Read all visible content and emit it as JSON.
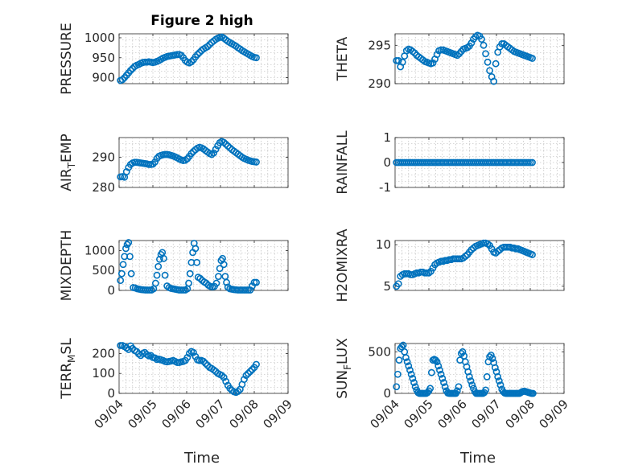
{
  "chart_data": [
    {
      "type": "scatter",
      "title": "Figure 2 high",
      "ylabel": "PRESSURE",
      "ylim": [
        885,
        1010
      ],
      "yticks": [
        "900",
        "950",
        "1000"
      ],
      "ytick_values": [
        900,
        950,
        1000
      ],
      "x": [
        4.04,
        4.1,
        4.16,
        4.22,
        4.28,
        4.34,
        4.4,
        4.46,
        4.52,
        4.58,
        4.64,
        4.7,
        4.76,
        4.82,
        4.88,
        4.94,
        5.0,
        5.06,
        5.12,
        5.18,
        5.24,
        5.3,
        5.36,
        5.42,
        5.48,
        5.54,
        5.6,
        5.66,
        5.72,
        5.78,
        5.84,
        5.9,
        5.96,
        6.02,
        6.08,
        6.14,
        6.2,
        6.26,
        6.32,
        6.38,
        6.44,
        6.5,
        6.56,
        6.62,
        6.68,
        6.74,
        6.8,
        6.86,
        6.92,
        6.98,
        7.04,
        7.1,
        7.16,
        7.22,
        7.28,
        7.34,
        7.4,
        7.46,
        7.52,
        7.58,
        7.64,
        7.7,
        7.76,
        7.82,
        7.88,
        7.94,
        8.0,
        8.06
      ],
      "y": [
        893,
        895,
        900,
        906,
        912,
        918,
        923,
        928,
        931,
        933,
        936,
        938,
        939,
        939,
        940,
        939,
        938,
        939,
        941,
        943,
        946,
        949,
        951,
        953,
        954,
        955,
        956,
        957,
        958,
        958,
        956,
        950,
        943,
        939,
        937,
        940,
        945,
        952,
        958,
        963,
        968,
        972,
        975,
        978,
        983,
        988,
        992,
        996,
        999,
        1001,
        1002,
        999,
        995,
        991,
        988,
        985,
        982,
        979,
        975,
        972,
        968,
        965,
        962,
        959,
        956,
        953,
        951,
        950
      ]
    },
    {
      "type": "scatter",
      "ylabel": "THETA",
      "ylim": [
        290,
        296.5
      ],
      "yticks": [
        "290",
        "295"
      ],
      "ytick_values": [
        290,
        295
      ],
      "x": [
        4.04,
        4.1,
        4.16,
        4.22,
        4.28,
        4.34,
        4.4,
        4.46,
        4.52,
        4.58,
        4.64,
        4.7,
        4.76,
        4.82,
        4.88,
        4.94,
        5.0,
        5.06,
        5.12,
        5.18,
        5.24,
        5.3,
        5.36,
        5.42,
        5.48,
        5.54,
        5.6,
        5.66,
        5.72,
        5.78,
        5.84,
        5.9,
        5.96,
        6.02,
        6.08,
        6.14,
        6.2,
        6.26,
        6.32,
        6.38,
        6.44,
        6.5,
        6.56,
        6.62,
        6.68,
        6.74,
        6.8,
        6.86,
        6.92,
        6.98,
        7.04,
        7.1,
        7.16,
        7.22,
        7.28,
        7.34,
        7.4,
        7.46,
        7.52,
        7.58,
        7.64,
        7.7,
        7.76,
        7.82,
        7.88,
        7.94,
        8.0,
        8.06
      ],
      "y": [
        293.0,
        293.0,
        292.2,
        292.8,
        293.6,
        294.3,
        294.5,
        294.4,
        294.2,
        294.0,
        293.7,
        293.5,
        293.3,
        293.1,
        292.9,
        292.8,
        292.7,
        292.6,
        292.7,
        293.2,
        293.8,
        294.3,
        294.4,
        294.4,
        294.3,
        294.2,
        294.1,
        294.0,
        293.9,
        293.8,
        293.7,
        293.9,
        294.2,
        294.5,
        294.6,
        294.7,
        294.9,
        295.3,
        295.8,
        296.1,
        296.3,
        296.2,
        295.8,
        295.0,
        293.9,
        292.8,
        291.7,
        290.9,
        290.3,
        292.6,
        294.1,
        294.8,
        295.2,
        295.2,
        295.0,
        294.8,
        294.6,
        294.4,
        294.2,
        294.1,
        294.0,
        293.9,
        293.8,
        293.7,
        293.6,
        293.5,
        293.4,
        293.3
      ]
    },
    {
      "type": "scatter",
      "ylabel": "AIR_TEMP",
      "ylabel_main": "AIR",
      "ylabel_sub": "T",
      "ylabel_rest": "EMP",
      "ylim": [
        280,
        296.5
      ],
      "yticks": [
        "280",
        "290"
      ],
      "ytick_values": [
        280,
        290
      ],
      "x": [
        4.04,
        4.1,
        4.16,
        4.22,
        4.28,
        4.34,
        4.4,
        4.46,
        4.52,
        4.58,
        4.64,
        4.7,
        4.76,
        4.82,
        4.88,
        4.94,
        5.0,
        5.06,
        5.12,
        5.18,
        5.24,
        5.3,
        5.36,
        5.42,
        5.48,
        5.54,
        5.6,
        5.66,
        5.72,
        5.78,
        5.84,
        5.9,
        5.96,
        6.02,
        6.08,
        6.14,
        6.2,
        6.26,
        6.32,
        6.38,
        6.44,
        6.5,
        6.56,
        6.62,
        6.68,
        6.74,
        6.8,
        6.86,
        6.92,
        6.98,
        7.04,
        7.1,
        7.16,
        7.22,
        7.28,
        7.34,
        7.4,
        7.46,
        7.52,
        7.58,
        7.64,
        7.7,
        7.76,
        7.82,
        7.88,
        7.94,
        8.0,
        8.06
      ],
      "y": [
        283.5,
        283.6,
        283.4,
        285.2,
        286.6,
        287.6,
        288.1,
        288.3,
        288.3,
        288.2,
        288.1,
        288.0,
        287.9,
        287.8,
        287.6,
        287.6,
        287.7,
        288.4,
        289.6,
        290.3,
        290.6,
        290.8,
        290.9,
        290.9,
        290.8,
        290.6,
        290.4,
        290.1,
        289.8,
        289.4,
        289.1,
        288.9,
        289.0,
        289.5,
        290.3,
        291.2,
        291.9,
        292.5,
        293.0,
        293.3,
        293.1,
        292.7,
        292.2,
        291.7,
        291.2,
        290.9,
        291.4,
        292.6,
        293.8,
        294.8,
        295.2,
        294.9,
        294.3,
        293.7,
        293.1,
        292.5,
        292.0,
        291.5,
        291.0,
        290.5,
        290.0,
        289.6,
        289.3,
        289.0,
        288.8,
        288.6,
        288.5,
        288.4
      ]
    },
    {
      "type": "scatter",
      "ylabel": "RAINFALL",
      "ylim": [
        -1,
        1
      ],
      "yticks": [
        "-1",
        "0",
        "1"
      ],
      "ytick_values": [
        -1,
        0,
        1
      ],
      "x": [
        4.04,
        4.1,
        4.16,
        4.22,
        4.28,
        4.34,
        4.4,
        4.46,
        4.52,
        4.58,
        4.64,
        4.7,
        4.76,
        4.82,
        4.88,
        4.94,
        5.0,
        5.06,
        5.12,
        5.18,
        5.24,
        5.3,
        5.36,
        5.42,
        5.48,
        5.54,
        5.6,
        5.66,
        5.72,
        5.78,
        5.84,
        5.9,
        5.96,
        6.02,
        6.08,
        6.14,
        6.2,
        6.26,
        6.32,
        6.38,
        6.44,
        6.5,
        6.56,
        6.62,
        6.68,
        6.74,
        6.8,
        6.86,
        6.92,
        6.98,
        7.04,
        7.1,
        7.16,
        7.22,
        7.28,
        7.34,
        7.4,
        7.46,
        7.52,
        7.58,
        7.64,
        7.7,
        7.76,
        7.82,
        7.88,
        7.94,
        8.0,
        8.06
      ],
      "y": [
        0,
        0,
        0,
        0,
        0,
        0,
        0,
        0,
        0,
        0,
        0,
        0,
        0,
        0,
        0,
        0,
        0,
        0,
        0,
        0,
        0,
        0,
        0,
        0,
        0,
        0,
        0,
        0,
        0,
        0,
        0,
        0,
        0,
        0,
        0,
        0,
        0,
        0,
        0,
        0,
        0,
        0,
        0,
        0,
        0,
        0,
        0,
        0,
        0,
        0,
        0,
        0,
        0,
        0,
        0,
        0,
        0,
        0,
        0,
        0,
        0,
        0,
        0,
        0,
        0,
        0,
        0,
        0
      ]
    },
    {
      "type": "scatter",
      "ylabel": "MIXDEPTH",
      "ylim": [
        0,
        1250
      ],
      "yticks": [
        "0",
        "500",
        "1000"
      ],
      "ytick_values": [
        0,
        500,
        1000
      ],
      "x": [
        4.04,
        4.08,
        4.12,
        4.16,
        4.2,
        4.24,
        4.28,
        4.32,
        4.36,
        4.42,
        4.48,
        4.54,
        4.6,
        4.66,
        4.72,
        4.78,
        4.84,
        4.9,
        4.96,
        5.02,
        5.08,
        5.12,
        5.16,
        5.2,
        5.24,
        5.28,
        5.32,
        5.36,
        5.42,
        5.48,
        5.54,
        5.6,
        5.66,
        5.72,
        5.78,
        5.84,
        5.9,
        5.96,
        6.02,
        6.06,
        6.1,
        6.14,
        6.18,
        6.22,
        6.26,
        6.3,
        6.34,
        6.4,
        6.46,
        6.52,
        6.58,
        6.64,
        6.7,
        6.76,
        6.82,
        6.88,
        6.94,
        6.98,
        7.02,
        7.06,
        7.1,
        7.14,
        7.18,
        7.22,
        7.28,
        7.34,
        7.4,
        7.46,
        7.52,
        7.58,
        7.64,
        7.7,
        7.76,
        7.82,
        7.88,
        7.94,
        8.0,
        8.06
      ],
      "y": [
        250,
        420,
        650,
        850,
        1050,
        1150,
        1200,
        850,
        420,
        70,
        60,
        40,
        30,
        20,
        15,
        10,
        10,
        10,
        10,
        40,
        180,
        380,
        600,
        780,
        900,
        950,
        800,
        380,
        110,
        70,
        50,
        40,
        30,
        20,
        10,
        10,
        10,
        10,
        40,
        180,
        420,
        700,
        950,
        1180,
        1050,
        700,
        330,
        300,
        250,
        210,
        180,
        130,
        100,
        90,
        100,
        180,
        350,
        550,
        750,
        800,
        650,
        350,
        200,
        80,
        40,
        30,
        20,
        15,
        10,
        10,
        10,
        10,
        10,
        10,
        10,
        110,
        200,
        200
      ]
    },
    {
      "type": "scatter",
      "ylabel": "H2OMIXRA",
      "ylim": [
        4.5,
        10.5
      ],
      "yticks": [
        "5",
        "10"
      ],
      "ytick_values": [
        5,
        10
      ],
      "x": [
        4.04,
        4.1,
        4.16,
        4.22,
        4.28,
        4.34,
        4.4,
        4.46,
        4.52,
        4.58,
        4.64,
        4.7,
        4.76,
        4.82,
        4.88,
        4.94,
        5.0,
        5.06,
        5.12,
        5.18,
        5.24,
        5.3,
        5.36,
        5.42,
        5.48,
        5.54,
        5.6,
        5.66,
        5.72,
        5.78,
        5.84,
        5.9,
        5.96,
        6.02,
        6.08,
        6.14,
        6.2,
        6.26,
        6.32,
        6.38,
        6.44,
        6.5,
        6.56,
        6.62,
        6.68,
        6.74,
        6.8,
        6.86,
        6.92,
        6.98,
        7.04,
        7.1,
        7.16,
        7.22,
        7.28,
        7.34,
        7.4,
        7.46,
        7.52,
        7.58,
        7.64,
        7.7,
        7.76,
        7.82,
        7.88,
        7.94,
        8.0,
        8.06
      ],
      "y": [
        5.0,
        5.3,
        6.2,
        6.4,
        6.5,
        6.5,
        6.5,
        6.4,
        6.4,
        6.5,
        6.6,
        6.6,
        6.7,
        6.7,
        6.6,
        6.6,
        6.6,
        6.8,
        7.2,
        7.6,
        7.8,
        7.9,
        8.0,
        8.0,
        8.1,
        8.1,
        8.2,
        8.2,
        8.3,
        8.3,
        8.3,
        8.3,
        8.3,
        8.4,
        8.6,
        8.8,
        9.1,
        9.4,
        9.6,
        9.8,
        9.9,
        10.0,
        10.1,
        10.2,
        10.2,
        10.1,
        9.9,
        9.5,
        9.1,
        9.0,
        9.2,
        9.4,
        9.6,
        9.7,
        9.7,
        9.7,
        9.7,
        9.6,
        9.6,
        9.5,
        9.5,
        9.4,
        9.3,
        9.2,
        9.1,
        9.0,
        8.9,
        8.8
      ]
    },
    {
      "type": "scatter",
      "ylabel": "TERR_MSL",
      "ylabel_main": "TERR",
      "ylabel_sub": "M",
      "ylabel_rest": "SL",
      "ylim": [
        0,
        250
      ],
      "yticks": [
        "0",
        "100",
        "200"
      ],
      "ytick_values": [
        0,
        100,
        200
      ],
      "x": [
        4.04,
        4.1,
        4.16,
        4.22,
        4.28,
        4.34,
        4.4,
        4.46,
        4.52,
        4.58,
        4.64,
        4.7,
        4.76,
        4.82,
        4.88,
        4.94,
        5.0,
        5.06,
        5.12,
        5.18,
        5.24,
        5.3,
        5.36,
        5.42,
        5.48,
        5.54,
        5.6,
        5.66,
        5.72,
        5.78,
        5.84,
        5.9,
        5.96,
        6.02,
        6.08,
        6.14,
        6.2,
        6.26,
        6.32,
        6.38,
        6.44,
        6.5,
        6.56,
        6.62,
        6.68,
        6.74,
        6.8,
        6.86,
        6.92,
        6.98,
        7.04,
        7.1,
        7.16,
        7.22,
        7.28,
        7.34,
        7.4,
        7.46,
        7.52,
        7.58,
        7.64,
        7.7,
        7.76,
        7.82,
        7.88,
        7.94,
        8.0,
        8.06
      ],
      "y": [
        240,
        240,
        235,
        228,
        220,
        238,
        225,
        215,
        210,
        198,
        190,
        200,
        205,
        195,
        188,
        190,
        180,
        178,
        170,
        172,
        168,
        165,
        160,
        158,
        160,
        162,
        165,
        160,
        155,
        155,
        158,
        160,
        165,
        180,
        200,
        210,
        205,
        185,
        168,
        165,
        165,
        160,
        150,
        140,
        130,
        125,
        118,
        110,
        100,
        95,
        90,
        80,
        60,
        40,
        25,
        15,
        8,
        5,
        10,
        20,
        45,
        70,
        90,
        100,
        110,
        120,
        130,
        145
      ]
    },
    {
      "type": "scatter",
      "ylabel": "SUN_FLUX",
      "ylabel_main": "SUN",
      "ylabel_sub": "F",
      "ylabel_rest": "LUX",
      "ylim": [
        0,
        600
      ],
      "yticks": [
        "0",
        "500"
      ],
      "ytick_values": [
        0,
        500
      ],
      "x": [
        4.04,
        4.08,
        4.12,
        4.16,
        4.2,
        4.24,
        4.28,
        4.32,
        4.36,
        4.4,
        4.44,
        4.48,
        4.52,
        4.56,
        4.6,
        4.64,
        4.68,
        4.72,
        4.76,
        4.8,
        4.84,
        4.88,
        4.92,
        4.96,
        5.0,
        5.04,
        5.08,
        5.12,
        5.16,
        5.2,
        5.24,
        5.28,
        5.32,
        5.36,
        5.4,
        5.44,
        5.48,
        5.52,
        5.56,
        5.6,
        5.64,
        5.68,
        5.72,
        5.76,
        5.8,
        5.84,
        5.88,
        5.92,
        5.96,
        6.0,
        6.04,
        6.08,
        6.12,
        6.16,
        6.2,
        6.24,
        6.28,
        6.32,
        6.36,
        6.4,
        6.44,
        6.48,
        6.52,
        6.56,
        6.6,
        6.64,
        6.68,
        6.72,
        6.76,
        6.8,
        6.84,
        6.88,
        6.92,
        6.96,
        7.0,
        7.04,
        7.08,
        7.12,
        7.16,
        7.2,
        7.24,
        7.28,
        7.32,
        7.36,
        7.4,
        7.44,
        7.48,
        7.52,
        7.56,
        7.6,
        7.64,
        7.68,
        7.72,
        7.76,
        7.8,
        7.84,
        7.88,
        7.92,
        7.96,
        8.0,
        8.04,
        8.08
      ],
      "y": [
        80,
        230,
        400,
        540,
        560,
        580,
        500,
        430,
        380,
        330,
        280,
        230,
        180,
        130,
        80,
        40,
        10,
        0,
        0,
        0,
        0,
        0,
        0,
        10,
        30,
        60,
        250,
        400,
        410,
        400,
        380,
        330,
        280,
        230,
        180,
        130,
        80,
        30,
        5,
        0,
        0,
        0,
        0,
        0,
        0,
        30,
        80,
        400,
        480,
        500,
        450,
        380,
        320,
        260,
        200,
        150,
        100,
        60,
        20,
        0,
        0,
        0,
        0,
        0,
        0,
        10,
        40,
        200,
        380,
        440,
        460,
        420,
        370,
        310,
        260,
        200,
        150,
        100,
        50,
        20,
        5,
        0,
        0,
        0,
        0,
        0,
        0,
        0,
        0,
        0,
        0,
        0,
        10,
        20,
        25,
        25,
        20,
        15,
        10,
        5,
        0,
        0
      ]
    }
  ],
  "shared": {
    "xlim": [
      4,
      9
    ],
    "xticks": [
      "09/04",
      "09/05",
      "09/06",
      "09/07",
      "09/08",
      "09/09"
    ],
    "xtick_values": [
      4,
      5,
      6,
      7,
      8,
      9
    ],
    "xlabel": "Time",
    "marker_color": "#0072bd"
  }
}
